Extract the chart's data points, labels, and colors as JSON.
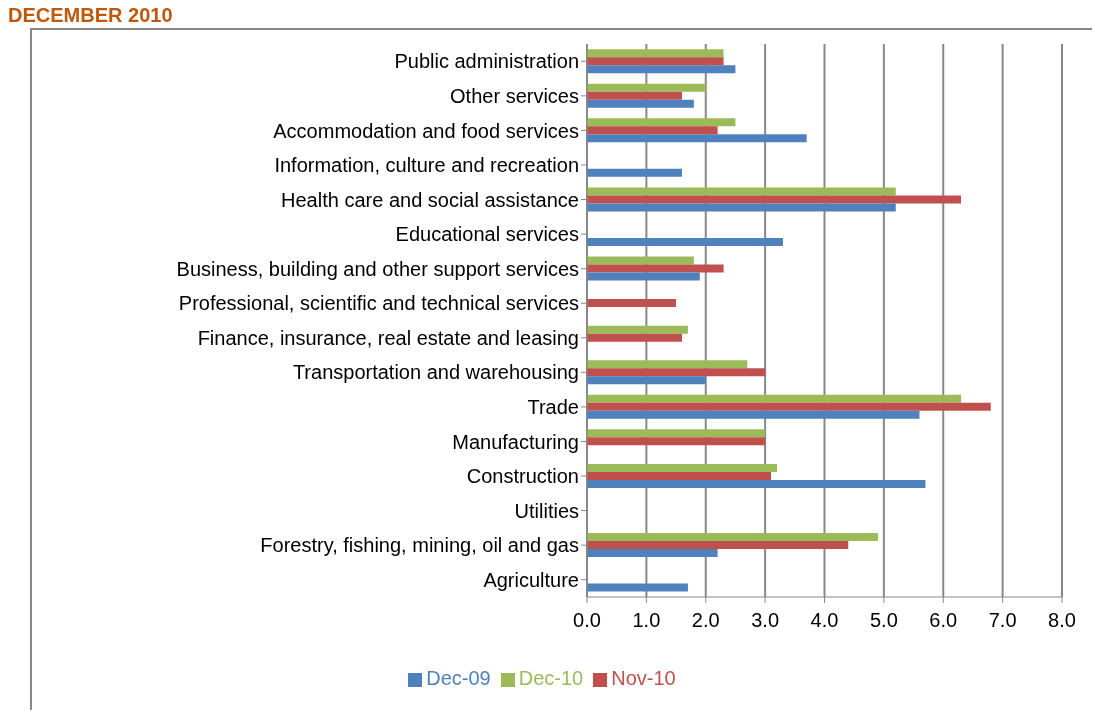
{
  "chart_data": {
    "type": "bar",
    "title": "DECEMBER 2010",
    "orientation": "horizontal",
    "categories": [
      "Public administration",
      "Other services",
      "Accommodation and food services",
      "Information, culture and recreation",
      "Health care and social assistance",
      "Educational services",
      "Business, building and other support services",
      "Professional, scientific and technical services",
      "Finance, insurance, real estate and leasing",
      "Transportation and warehousing",
      "Trade",
      "Manufacturing",
      "Construction",
      "Utilities",
      "Forestry, fishing, mining, oil and gas",
      "Agriculture"
    ],
    "series": [
      {
        "name": "Dec-10",
        "color": "#9bbb59",
        "values": [
          2.3,
          2.0,
          2.5,
          null,
          5.2,
          null,
          1.8,
          null,
          1.7,
          2.7,
          6.3,
          3.0,
          3.2,
          null,
          4.9,
          null
        ]
      },
      {
        "name": "Nov-10",
        "color": "#c0504d",
        "values": [
          2.3,
          1.6,
          2.2,
          null,
          6.3,
          null,
          2.3,
          1.5,
          1.6,
          3.0,
          6.8,
          3.0,
          3.1,
          null,
          4.4,
          null
        ]
      },
      {
        "name": "Dec-09",
        "color": "#4f81bd",
        "values": [
          2.5,
          1.8,
          3.7,
          1.6,
          5.2,
          3.3,
          1.9,
          null,
          null,
          2.0,
          5.6,
          null,
          5.7,
          null,
          2.2,
          1.7
        ]
      }
    ],
    "xlim": [
      0,
      8
    ],
    "xticks": [
      {
        "value": 0,
        "label": "0.0"
      },
      {
        "value": 1,
        "label": "1.0"
      },
      {
        "value": 2,
        "label": "2.0"
      },
      {
        "value": 3,
        "label": "3.0"
      },
      {
        "value": 4,
        "label": "4.0"
      },
      {
        "value": 5,
        "label": "5.0"
      },
      {
        "value": 6,
        "label": "6.0"
      },
      {
        "value": 7,
        "label": "7.0"
      },
      {
        "value": 8,
        "label": "8.0"
      }
    ],
    "grid": "x",
    "legend": "bottom"
  }
}
